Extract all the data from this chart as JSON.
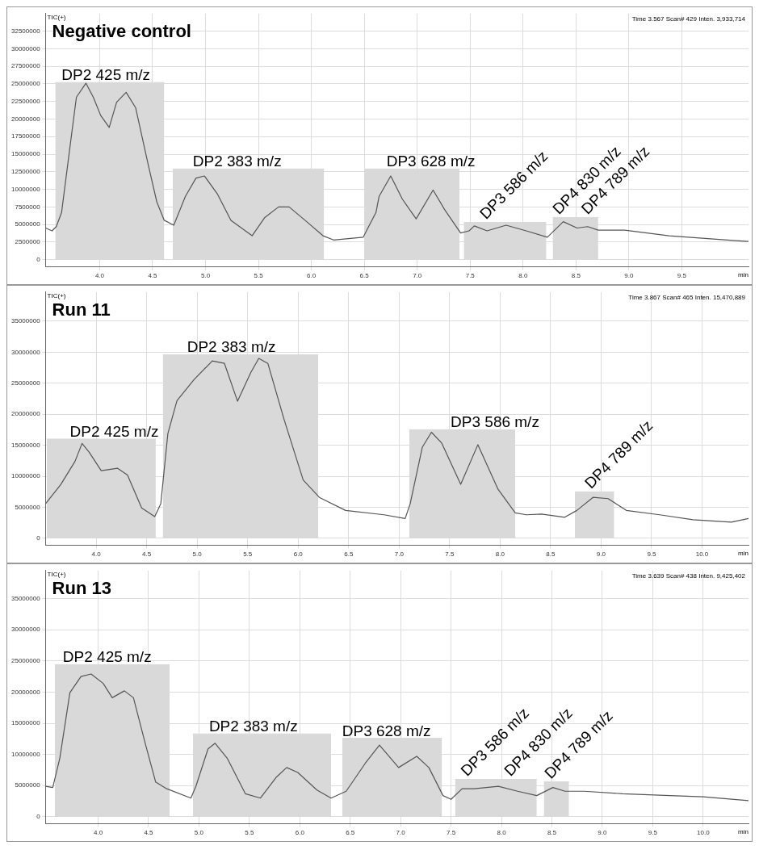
{
  "chart_data": [
    {
      "type": "line",
      "title": "Negative control",
      "ylabel": "TIC(+)",
      "xlabel": "min",
      "grid": true,
      "legend": false,
      "xlim": [
        3.49,
        10.13
      ],
      "xticks": [
        {
          "value": 4,
          "label": "4.0"
        },
        {
          "value": 4.5,
          "label": "4.5"
        },
        {
          "value": 5,
          "label": "5.0"
        },
        {
          "value": 5.5,
          "label": "5.5"
        },
        {
          "value": 6,
          "label": "6.0"
        },
        {
          "value": 6.5,
          "label": "6.5"
        },
        {
          "value": 7,
          "label": "7.0"
        },
        {
          "value": 7.5,
          "label": "7.5"
        },
        {
          "value": 8,
          "label": "8.0"
        },
        {
          "value": 8.5,
          "label": "8.5"
        },
        {
          "value": 9,
          "label": "9.0"
        },
        {
          "value": 9.5,
          "label": "9.5"
        }
      ],
      "ylim": [
        -1000000,
        35000000
      ],
      "yticks": [
        0,
        2500000,
        5000000,
        7500000,
        10000000,
        12500000,
        15000000,
        17500000,
        20000000,
        22500000,
        25000000,
        27500000,
        30000000,
        32500000
      ],
      "annotations": [
        "Time 3.567 Scan# 429 Inten. 3,933,714",
        {
          "text": "DP2 425 m/z",
          "x": 3.64,
          "y": 25200000
        },
        {
          "text": "DP2 383 m/z",
          "x": 4.88,
          "y": 12900000
        },
        {
          "text": "DP3 628 m/z",
          "x": 6.71,
          "y": 12900000
        },
        {
          "text": "DP3 586 m/z",
          "x": 7.65,
          "y": 5300000
        },
        {
          "text": "DP4 830 m/z",
          "x": 8.34,
          "y": 6000000
        },
        {
          "text": "DP4 789 m/z",
          "x": 8.61,
          "y": 6000000
        }
      ],
      "series": [
        {
          "type": "area",
          "color": "#d9d9d9",
          "x": [
            3.58,
            4.61
          ],
          "values": [
            25200000,
            25200000
          ]
        },
        {
          "type": "area",
          "color": "#d9d9d9",
          "x": [
            4.69,
            6.12
          ],
          "values": [
            12900000,
            12900000
          ]
        },
        {
          "type": "area",
          "color": "#d9d9d9",
          "x": [
            6.5,
            7.4
          ],
          "values": [
            12900000,
            12900000
          ]
        },
        {
          "type": "area",
          "color": "#d9d9d9",
          "x": [
            7.44,
            8.22
          ],
          "values": [
            5300000,
            5300000
          ]
        },
        {
          "type": "area",
          "color": "#d9d9d9",
          "x": [
            8.28,
            8.71
          ],
          "values": [
            6000000,
            6000000
          ]
        },
        {
          "color": "#555555",
          "x": [
            3.49,
            3.55,
            3.59,
            3.64,
            3.72,
            3.78,
            3.87,
            3.94,
            4.01,
            4.09,
            4.16,
            4.25,
            4.34,
            4.46,
            4.54,
            4.61,
            4.7,
            4.81,
            4.91,
            4.99,
            5.11,
            5.24,
            5.44,
            5.56,
            5.69,
            5.79,
            5.94,
            6.11,
            6.21,
            6.49,
            6.61,
            6.64,
            6.75,
            6.86,
            6.99,
            7.15,
            7.26,
            7.41,
            7.49,
            7.54,
            7.66,
            7.84,
            8.03,
            8.23,
            8.38,
            8.51,
            8.61,
            8.71,
            8.96,
            9.38,
            9.93,
            10.13
          ],
          "values": [
            4500000,
            4100000,
            4700000,
            6700000,
            16100000,
            23100000,
            25100000,
            23100000,
            20500000,
            18800000,
            22400000,
            23800000,
            21600000,
            13400000,
            8200000,
            5600000,
            4900000,
            9000000,
            11600000,
            11900000,
            9400000,
            5600000,
            3400000,
            6000000,
            7500000,
            7500000,
            5600000,
            3400000,
            2800000,
            3200000,
            6700000,
            9000000,
            11900000,
            8600000,
            5800000,
            9900000,
            7100000,
            3800000,
            4100000,
            4800000,
            4100000,
            4900000,
            4100000,
            3200000,
            5400000,
            4500000,
            4700000,
            4200000,
            4200000,
            3400000,
            2800000,
            2600000
          ]
        }
      ]
    },
    {
      "type": "line",
      "title": "Run 11",
      "ylabel": "TIC(+)",
      "xlabel": "min",
      "grid": true,
      "legend": false,
      "xlim": [
        3.5,
        10.46
      ],
      "xticks": [
        {
          "value": 4,
          "label": "4.0"
        },
        {
          "value": 4.5,
          "label": "4.5"
        },
        {
          "value": 5,
          "label": "5.0"
        },
        {
          "value": 5.5,
          "label": "5.5"
        },
        {
          "value": 6,
          "label": "6.0"
        },
        {
          "value": 6.5,
          "label": "6.5"
        },
        {
          "value": 7,
          "label": "7.0"
        },
        {
          "value": 7.5,
          "label": "7.5"
        },
        {
          "value": 8,
          "label": "8.0"
        },
        {
          "value": 8.5,
          "label": "8.5"
        },
        {
          "value": 9,
          "label": "9.0"
        },
        {
          "value": 9.5,
          "label": "9.5"
        },
        {
          "value": 10,
          "label": "10.0"
        }
      ],
      "ylim": [
        -1100000,
        39700000
      ],
      "yticks": [
        0,
        5000000,
        10000000,
        15000000,
        20000000,
        25000000,
        30000000,
        35000000
      ],
      "annotations": [
        "Time 3.867 Scan# 465 Inten. 15,470,889",
        {
          "text": "DP2 425 m/z",
          "x": 3.74,
          "y": 16000000
        },
        {
          "text": "DP2 383 m/z",
          "x": 4.9,
          "y": 29600000
        },
        {
          "text": "DP3 586 m/z",
          "x": 7.51,
          "y": 17500000
        },
        {
          "text": "DP4 789 m/z",
          "x": 8.9,
          "y": 7500000
        }
      ],
      "series": [
        {
          "type": "area",
          "color": "#d9d9d9",
          "x": [
            3.51,
            4.59
          ],
          "values": [
            16000000,
            16000000
          ]
        },
        {
          "type": "area",
          "color": "#d9d9d9",
          "x": [
            4.66,
            6.2
          ],
          "values": [
            29600000,
            29600000
          ]
        },
        {
          "type": "area",
          "color": "#d9d9d9",
          "x": [
            7.1,
            8.15
          ],
          "values": [
            17500000,
            17500000
          ]
        },
        {
          "type": "area",
          "color": "#d9d9d9",
          "x": [
            8.74,
            9.13
          ],
          "values": [
            7500000,
            7500000
          ]
        },
        {
          "color": "#555555",
          "x": [
            3.5,
            3.65,
            3.79,
            3.86,
            3.93,
            4.05,
            4.21,
            4.31,
            4.45,
            4.58,
            4.64,
            4.71,
            4.8,
            4.97,
            5.15,
            5.27,
            5.4,
            5.53,
            5.61,
            5.7,
            5.86,
            6.05,
            6.21,
            6.47,
            6.85,
            7.06,
            7.11,
            7.23,
            7.32,
            7.42,
            7.61,
            7.78,
            7.98,
            8.15,
            8.26,
            8.41,
            8.64,
            8.76,
            8.92,
            9.07,
            9.25,
            9.58,
            9.91,
            10.29,
            10.46
          ],
          "values": [
            5600000,
            8700000,
            12400000,
            15300000,
            13900000,
            10900000,
            11300000,
            10200000,
            4900000,
            3500000,
            5600000,
            16900000,
            22200000,
            25600000,
            28600000,
            28200000,
            22100000,
            26700000,
            29000000,
            28200000,
            19200000,
            9400000,
            6600000,
            4500000,
            3800000,
            3200000,
            5600000,
            14700000,
            17100000,
            15400000,
            8700000,
            15100000,
            7900000,
            4100000,
            3800000,
            3900000,
            3400000,
            4500000,
            6600000,
            6400000,
            4500000,
            3800000,
            3000000,
            2600000,
            3200000
          ]
        }
      ]
    },
    {
      "type": "line",
      "title": "Run 13",
      "ylabel": "TIC(+)",
      "xlabel": "min",
      "grid": true,
      "legend": false,
      "xlim": [
        3.48,
        10.45
      ],
      "xticks": [
        {
          "value": 4,
          "label": "4.0"
        },
        {
          "value": 4.5,
          "label": "4.5"
        },
        {
          "value": 5,
          "label": "5.0"
        },
        {
          "value": 5.5,
          "label": "5.5"
        },
        {
          "value": 6,
          "label": "6.0"
        },
        {
          "value": 6.5,
          "label": "6.5"
        },
        {
          "value": 7,
          "label": "7.0"
        },
        {
          "value": 7.5,
          "label": "7.5"
        },
        {
          "value": 8,
          "label": "8.0"
        },
        {
          "value": 8.5,
          "label": "8.5"
        },
        {
          "value": 9,
          "label": "9.0"
        },
        {
          "value": 9.5,
          "label": "9.5"
        },
        {
          "value": 10,
          "label": "10.0"
        }
      ],
      "ylim": [
        -1100000,
        39500000
      ],
      "yticks": [
        0,
        5000000,
        10000000,
        15000000,
        20000000,
        25000000,
        30000000,
        35000000
      ],
      "annotations": [
        "Time 3.639 Scan# 438 Inten. 9,425,402",
        {
          "text": "DP2 425 m/z",
          "x": 3.65,
          "y": 24400000
        },
        {
          "text": "DP2 383 m/z",
          "x": 5.1,
          "y": 13300000
        },
        {
          "text": "DP3 628 m/z",
          "x": 6.42,
          "y": 12600000
        },
        {
          "text": "DP3 586 m/z",
          "x": 7.66,
          "y": 6000000
        },
        {
          "text": "DP4 830 m/z",
          "x": 8.09,
          "y": 6000000
        },
        {
          "text": "DP4 789 m/z",
          "x": 8.49,
          "y": 5600000
        }
      ],
      "series": [
        {
          "type": "area",
          "color": "#d9d9d9",
          "x": [
            3.57,
            4.71
          ],
          "values": [
            24400000,
            24400000
          ]
        },
        {
          "type": "area",
          "color": "#d9d9d9",
          "x": [
            4.94,
            6.31
          ],
          "values": [
            13300000,
            13300000
          ]
        },
        {
          "type": "area",
          "color": "#d9d9d9",
          "x": [
            6.42,
            7.41
          ],
          "values": [
            12600000,
            12600000
          ]
        },
        {
          "type": "area",
          "color": "#d9d9d9",
          "x": [
            7.54,
            8.35
          ],
          "values": [
            6000000,
            6000000
          ]
        },
        {
          "type": "area",
          "color": "#d9d9d9",
          "x": [
            8.42,
            8.67
          ],
          "values": [
            5600000,
            5600000
          ]
        },
        {
          "color": "#555555",
          "x": [
            3.48,
            3.55,
            3.62,
            3.72,
            3.83,
            3.93,
            4.05,
            4.14,
            4.26,
            4.35,
            4.47,
            4.57,
            4.68,
            4.92,
            4.97,
            5.09,
            5.16,
            5.28,
            5.46,
            5.61,
            5.77,
            5.87,
            5.98,
            6.17,
            6.31,
            6.46,
            6.65,
            6.79,
            6.98,
            7.16,
            7.28,
            7.42,
            7.5,
            7.61,
            7.73,
            7.97,
            8.16,
            8.35,
            8.51,
            8.63,
            8.82,
            9.2,
            9.67,
            10,
            10.45
          ],
          "values": [
            4900000,
            4700000,
            9400000,
            19900000,
            22500000,
            22900000,
            21400000,
            19100000,
            20200000,
            19100000,
            11600000,
            5600000,
            4500000,
            3000000,
            4900000,
            10900000,
            11800000,
            9400000,
            3700000,
            3000000,
            6400000,
            7900000,
            7100000,
            4300000,
            3000000,
            4100000,
            8600000,
            11500000,
            7900000,
            9700000,
            7900000,
            3400000,
            2800000,
            4500000,
            4500000,
            4900000,
            4100000,
            3400000,
            4700000,
            4100000,
            4100000,
            3700000,
            3400000,
            3200000,
            2600000
          ]
        }
      ]
    }
  ]
}
